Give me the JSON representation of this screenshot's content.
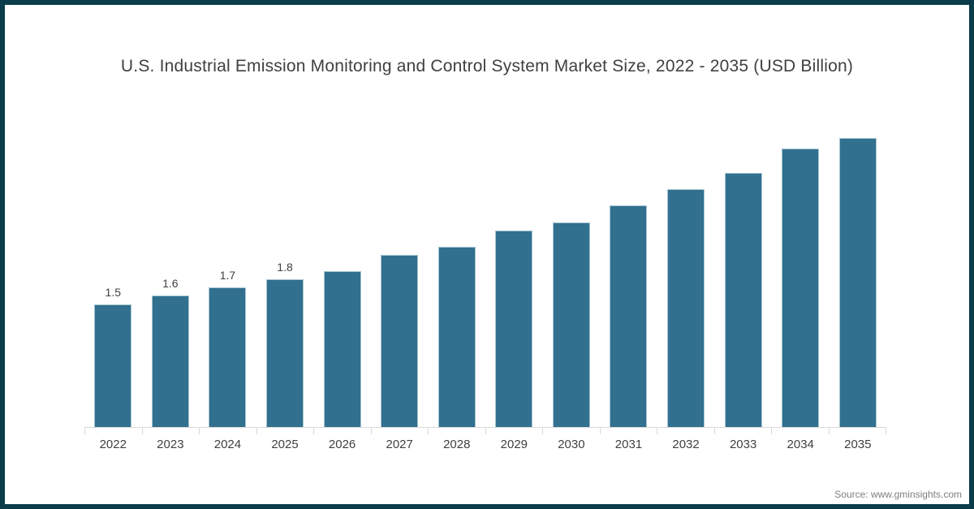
{
  "chart": {
    "title": "U.S. Industrial Emission Monitoring and Control System Market Size, 2022 - 2035 (USD Billion)",
    "source": "Source: www.gminsights.com"
  },
  "chart_data": {
    "type": "bar",
    "title": "U.S. Industrial Emission Monitoring and Control System Market Size, 2022 - 2035 (USD Billion)",
    "categories": [
      "2022",
      "2023",
      "2024",
      "2025",
      "2026",
      "2027",
      "2028",
      "2029",
      "2030",
      "2031",
      "2032",
      "2033",
      "2034",
      "2035"
    ],
    "values": [
      1.5,
      1.6,
      1.7,
      1.8,
      1.9,
      2.1,
      2.2,
      2.4,
      2.5,
      2.7,
      2.9,
      3.1,
      3.4,
      3.6
    ],
    "data_labels": [
      "1.5",
      "1.6",
      "1.7",
      "1.8",
      "",
      "",
      "",
      "",
      "",
      "",
      "",
      "",
      "",
      ""
    ],
    "xlabel": "",
    "ylabel": "",
    "ylim": [
      0,
      3.8
    ],
    "grid": false,
    "legend": "none",
    "y_axis_visible": false,
    "bar_color": "#31708E",
    "bar_edge_color": "#A6C5D3",
    "axis_color": "#D9D9D9",
    "text_color": "#404040",
    "frame_color": "#0A3C4A",
    "source_color": "#7F7F7F"
  }
}
